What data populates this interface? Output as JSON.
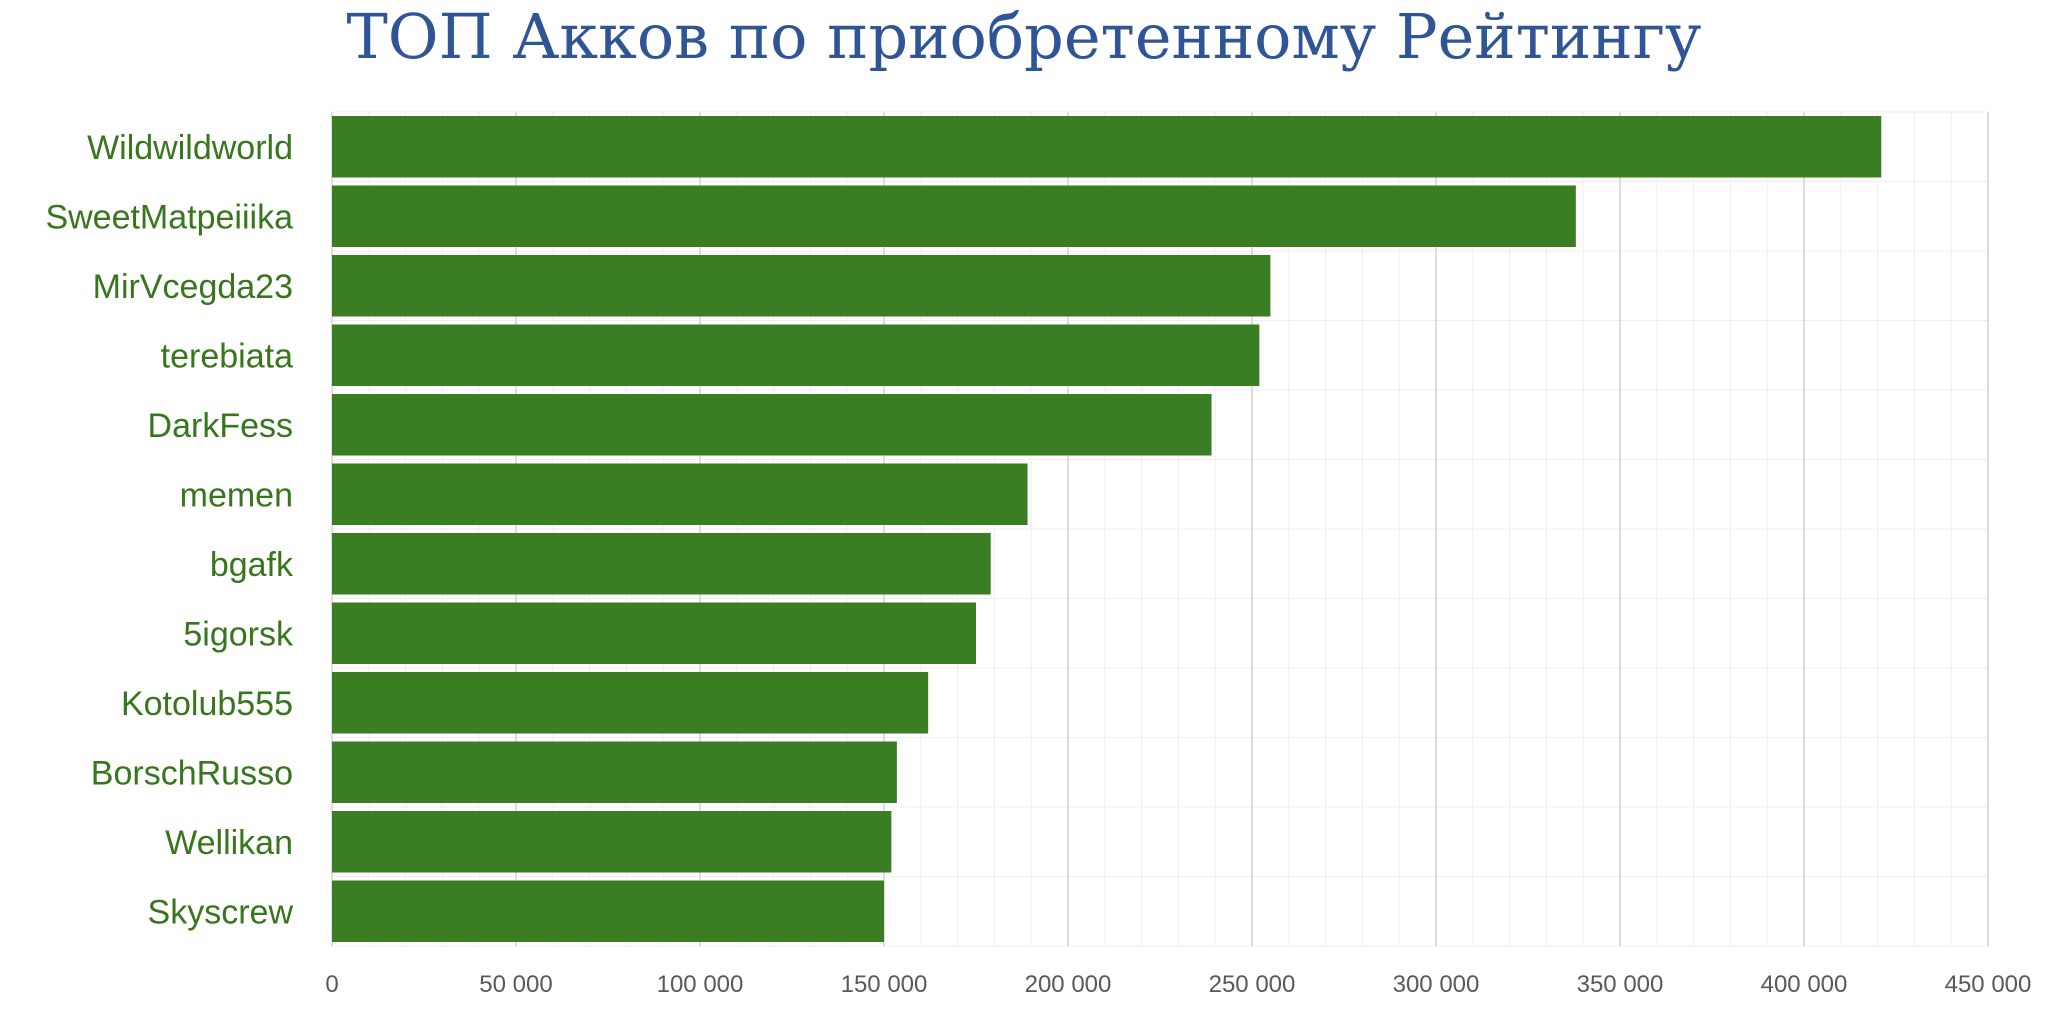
{
  "chart_data": {
    "type": "bar",
    "orientation": "horizontal",
    "title": "ТОП Акков по приобретенному Рейтингу",
    "xlabel": "",
    "ylabel": "",
    "categories": [
      "Wildwildworld",
      "SweetMatpeiiika",
      "MirVcegda23",
      "terebiata",
      "DarkFess",
      "memen",
      "bgafk",
      "5igorsk",
      "Kotolub555",
      "BorschRusso",
      "Wellikan",
      "Skyscrew"
    ],
    "values": [
      421000,
      338000,
      255000,
      252000,
      239000,
      189000,
      179000,
      175000,
      162000,
      153500,
      152000,
      150000
    ],
    "xlim": [
      0,
      450000
    ],
    "x_ticks": [
      0,
      50000,
      100000,
      150000,
      200000,
      250000,
      300000,
      350000,
      400000,
      450000
    ],
    "x_tick_labels": [
      "0",
      "50 000",
      "100 000",
      "150 000",
      "200 000",
      "250 000",
      "300 000",
      "350 000",
      "400 000",
      "450 000"
    ],
    "grid": true,
    "legend": "none",
    "colors": {
      "bar": "#3b7d23",
      "title": "#2f5597",
      "category_label": "#38761d",
      "tick_label": "#595959"
    }
  }
}
